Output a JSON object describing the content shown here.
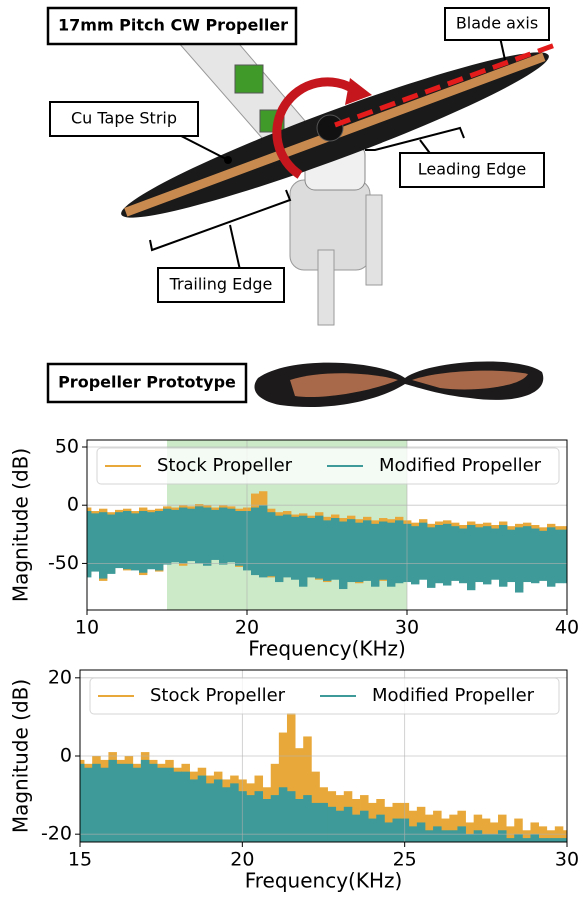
{
  "diagram": {
    "labels": [
      "17mm Pitch CW Propeller",
      "Blade axis",
      "Cu Tape Strip",
      "Leading Edge",
      "Trailing Edge",
      "Propeller Prototype"
    ]
  },
  "chart_data": [
    {
      "type": "range",
      "x_label": "Frequency(KHz)",
      "y_label": "Magnitude (dB)",
      "x": [
        10,
        10.5,
        11,
        11.5,
        12,
        12.5,
        13,
        13.5,
        14,
        14.5,
        15,
        15.5,
        16,
        16.5,
        17,
        17.5,
        18,
        18.5,
        19,
        19.5,
        20,
        20.5,
        21,
        21.5,
        22,
        22.5,
        23,
        23.5,
        24,
        24.5,
        25,
        25.5,
        26,
        26.5,
        27,
        27.5,
        28,
        28.5,
        29,
        29.5,
        30,
        30.5,
        31,
        31.5,
        32,
        32.5,
        33,
        33.5,
        34,
        34.5,
        35,
        35.5,
        36,
        36.5,
        37,
        37.5,
        38,
        38.5,
        39,
        39.5,
        40
      ],
      "series": [
        {
          "name": "Stock Propeller",
          "color": "#e8a93a",
          "values": [
            -2,
            -5,
            -3,
            -6,
            -4,
            -3,
            -5,
            -2,
            -4,
            -3,
            -1,
            -2,
            0,
            -1,
            1,
            0,
            -2,
            0,
            -1,
            -3,
            -2,
            10,
            12,
            -3,
            -6,
            -5,
            -8,
            -7,
            -9,
            -6,
            -10,
            -8,
            -11,
            -9,
            -12,
            -10,
            -13,
            -11,
            -12,
            -10,
            -13,
            -15,
            -12,
            -16,
            -14,
            -13,
            -15,
            -17,
            -14,
            -16,
            -15,
            -17,
            -14,
            -18,
            -16,
            -15,
            -17,
            -19,
            -16,
            -18,
            -18
          ],
          "lower": [
            -60,
            -55,
            -65,
            -58,
            -52,
            -56,
            -54,
            -60,
            -53,
            -57,
            -50,
            -48,
            -52,
            -47,
            -49,
            -51,
            -46,
            -50,
            -48,
            -53,
            -55,
            -58,
            -60,
            -62,
            -65,
            -60,
            -63,
            -68,
            -61,
            -64,
            -66,
            -62,
            -70,
            -64,
            -67,
            -63,
            -69,
            -65,
            -68,
            -66,
            -64,
            -67,
            -62,
            -70,
            -65,
            -68,
            -63,
            -66,
            -71,
            -64,
            -67,
            -62,
            -69,
            -65,
            -72,
            -64,
            -66,
            -63,
            -68,
            -65,
            -66
          ]
        },
        {
          "name": "Modified Propeller",
          "color": "#3e9a98",
          "values": [
            -5,
            -7,
            -6,
            -8,
            -6,
            -5,
            -7,
            -5,
            -6,
            -5,
            -3,
            -4,
            -2,
            -3,
            -1,
            -2,
            -4,
            -2,
            -3,
            -5,
            -5,
            -2,
            0,
            -6,
            -9,
            -8,
            -10,
            -9,
            -11,
            -9,
            -13,
            -11,
            -14,
            -12,
            -15,
            -13,
            -16,
            -14,
            -15,
            -13,
            -16,
            -18,
            -15,
            -19,
            -17,
            -16,
            -18,
            -20,
            -17,
            -19,
            -18,
            -20,
            -17,
            -21,
            -19,
            -18,
            -20,
            -22,
            -19,
            -21,
            -21
          ],
          "lower": [
            -62,
            -57,
            -63,
            -59,
            -54,
            -55,
            -56,
            -58,
            -55,
            -56,
            -51,
            -49,
            -50,
            -48,
            -50,
            -52,
            -47,
            -51,
            -49,
            -52,
            -56,
            -60,
            -62,
            -61,
            -66,
            -62,
            -64,
            -70,
            -62,
            -63,
            -65,
            -64,
            -72,
            -66,
            -66,
            -65,
            -70,
            -64,
            -70,
            -67,
            -66,
            -68,
            -64,
            -71,
            -67,
            -69,
            -65,
            -67,
            -73,
            -66,
            -68,
            -64,
            -70,
            -66,
            -75,
            -66,
            -67,
            -65,
            -70,
            -67,
            -67
          ]
        }
      ],
      "xlim": [
        10,
        40
      ],
      "xticks": [
        10,
        20,
        30,
        40
      ],
      "ylim": [
        -90,
        56
      ],
      "yticks": [
        -50,
        0,
        50
      ],
      "highlight": [
        15,
        30
      ],
      "highlight_color": "#8fcf86",
      "grid": true,
      "legend": "top"
    },
    {
      "type": "area",
      "x_label": "Frequency(KHz)",
      "y_label": "Magnitude (dB)",
      "x": [
        15,
        15.25,
        15.5,
        15.75,
        16,
        16.25,
        16.5,
        16.75,
        17,
        17.25,
        17.5,
        17.75,
        18,
        18.25,
        18.5,
        18.75,
        19,
        19.25,
        19.5,
        19.75,
        20,
        20.25,
        20.5,
        20.75,
        21,
        21.25,
        21.5,
        21.75,
        22,
        22.25,
        22.5,
        22.75,
        23,
        23.25,
        23.5,
        23.75,
        24,
        24.25,
        24.5,
        24.75,
        25,
        25.25,
        25.5,
        25.75,
        26,
        26.25,
        26.5,
        26.75,
        27,
        27.25,
        27.5,
        27.75,
        28,
        28.25,
        28.5,
        28.75,
        29,
        29.25,
        29.5,
        29.75,
        30
      ],
      "series": [
        {
          "name": "Stock Propeller",
          "color": "#e8a93a",
          "values": [
            -1,
            -2,
            0,
            -1,
            1,
            -1,
            0,
            -2,
            1,
            -1,
            -2,
            -1,
            -3,
            -2,
            -4,
            -3,
            -5,
            -4,
            -6,
            -5,
            -6,
            -7,
            -5,
            -8,
            -2,
            6,
            11,
            2,
            5,
            -4,
            -8,
            -9,
            -10,
            -9,
            -11,
            -10,
            -12,
            -11,
            -13,
            -12,
            -12,
            -14,
            -13,
            -15,
            -14,
            -16,
            -15,
            -14,
            -17,
            -15,
            -16,
            -17,
            -15,
            -18,
            -16,
            -19,
            -17,
            -18,
            -19,
            -18,
            -19
          ]
        },
        {
          "name": "Modified Propeller",
          "color": "#3e9a98",
          "values": [
            -2,
            -3,
            -2,
            -3,
            -1,
            -2,
            -2,
            -3,
            -1,
            -2,
            -3,
            -3,
            -4,
            -4,
            -6,
            -5,
            -7,
            -6,
            -8,
            -7,
            -9,
            -10,
            -9,
            -11,
            -10,
            -8,
            -9,
            -11,
            -10,
            -12,
            -12,
            -13,
            -14,
            -13,
            -15,
            -14,
            -16,
            -15,
            -17,
            -16,
            -16,
            -18,
            -17,
            -19,
            -18,
            -19,
            -19,
            -18,
            -20,
            -19,
            -20,
            -20,
            -19,
            -21,
            -20,
            -21,
            -20,
            -21,
            -21,
            -21,
            -21
          ]
        }
      ],
      "xlim": [
        15,
        30
      ],
      "xticks": [
        15,
        20,
        25,
        30
      ],
      "ylim": [
        -22,
        22
      ],
      "yticks": [
        -20,
        0,
        20
      ],
      "grid": true,
      "legend": "top"
    }
  ]
}
